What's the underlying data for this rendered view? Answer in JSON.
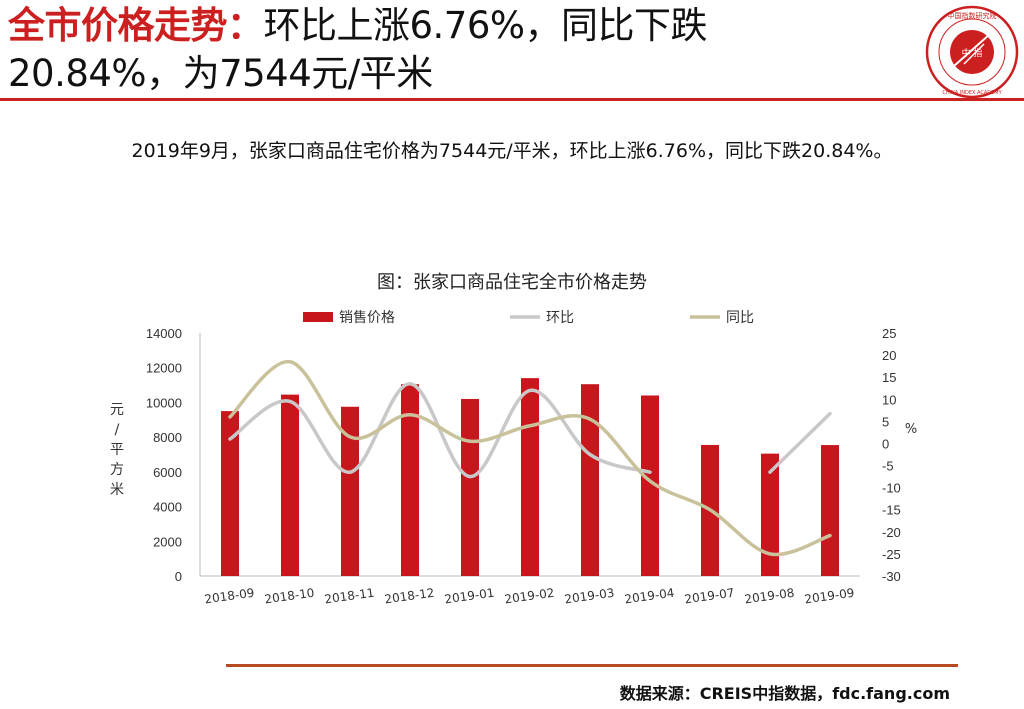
{
  "header": {
    "title_highlight": "全市价格走势：",
    "title_line1_rest": "环比上涨6.76%，同比下跌",
    "title_line2": "20.84%，为7544元/平米"
  },
  "logo": {
    "text_outer": "中国指数研究院",
    "text_center": "中 指",
    "text_en": "CHINA INDEX ACADEMY"
  },
  "summary": "2019年9月，张家口商品住宅价格为7544元/平米，环比上涨6.76%，同比下跌20.84%。",
  "colors": {
    "accent": "#cc1f1f",
    "bar": "#c8161d",
    "mom": "#c8c8c8",
    "yoy": "#c9c19a",
    "rule_bottom": "#b84a1f"
  },
  "chart_data": {
    "type": "bar",
    "title": "图：张家口商品住宅全市价格走势",
    "categories": [
      "2018-09",
      "2018-10",
      "2018-11",
      "2018-12",
      "2019-01",
      "2019-02",
      "2019-03",
      "2019-04",
      "2019-07",
      "2019-08",
      "2019-09"
    ],
    "y_left": {
      "label": "元/平方米",
      "ylim": [
        0,
        14000
      ],
      "ticks": [
        0,
        2000,
        4000,
        6000,
        8000,
        10000,
        12000,
        14000
      ]
    },
    "y_right": {
      "label": "%",
      "ylim": [
        -30,
        25
      ],
      "ticks": [
        25,
        20,
        15,
        10,
        5,
        0,
        -5,
        -10,
        -15,
        -20,
        -25,
        -30
      ]
    },
    "legend": {
      "position": "top",
      "items": [
        "销售价格",
        "环比",
        "同比"
      ]
    },
    "series": [
      {
        "name": "销售价格",
        "type": "bar",
        "axis": "left",
        "values": [
          9500,
          10450,
          9750,
          11050,
          10200,
          11400,
          11050,
          10400,
          7550,
          7050,
          7544
        ]
      },
      {
        "name": "环比",
        "type": "line",
        "axis": "right",
        "values": [
          1.0,
          9.5,
          -6.5,
          13.5,
          -7.5,
          12.0,
          -2.5,
          -6.5,
          null,
          -6.5,
          6.76
        ]
      },
      {
        "name": "同比",
        "type": "line",
        "axis": "right",
        "values": [
          6.0,
          18.5,
          1.5,
          6.5,
          0.5,
          4.0,
          5.5,
          -8.5,
          -15.0,
          -25.0,
          -20.84
        ]
      }
    ]
  },
  "footer": {
    "source": "数据来源：CREIS中指数据，fdc.fang.com"
  }
}
